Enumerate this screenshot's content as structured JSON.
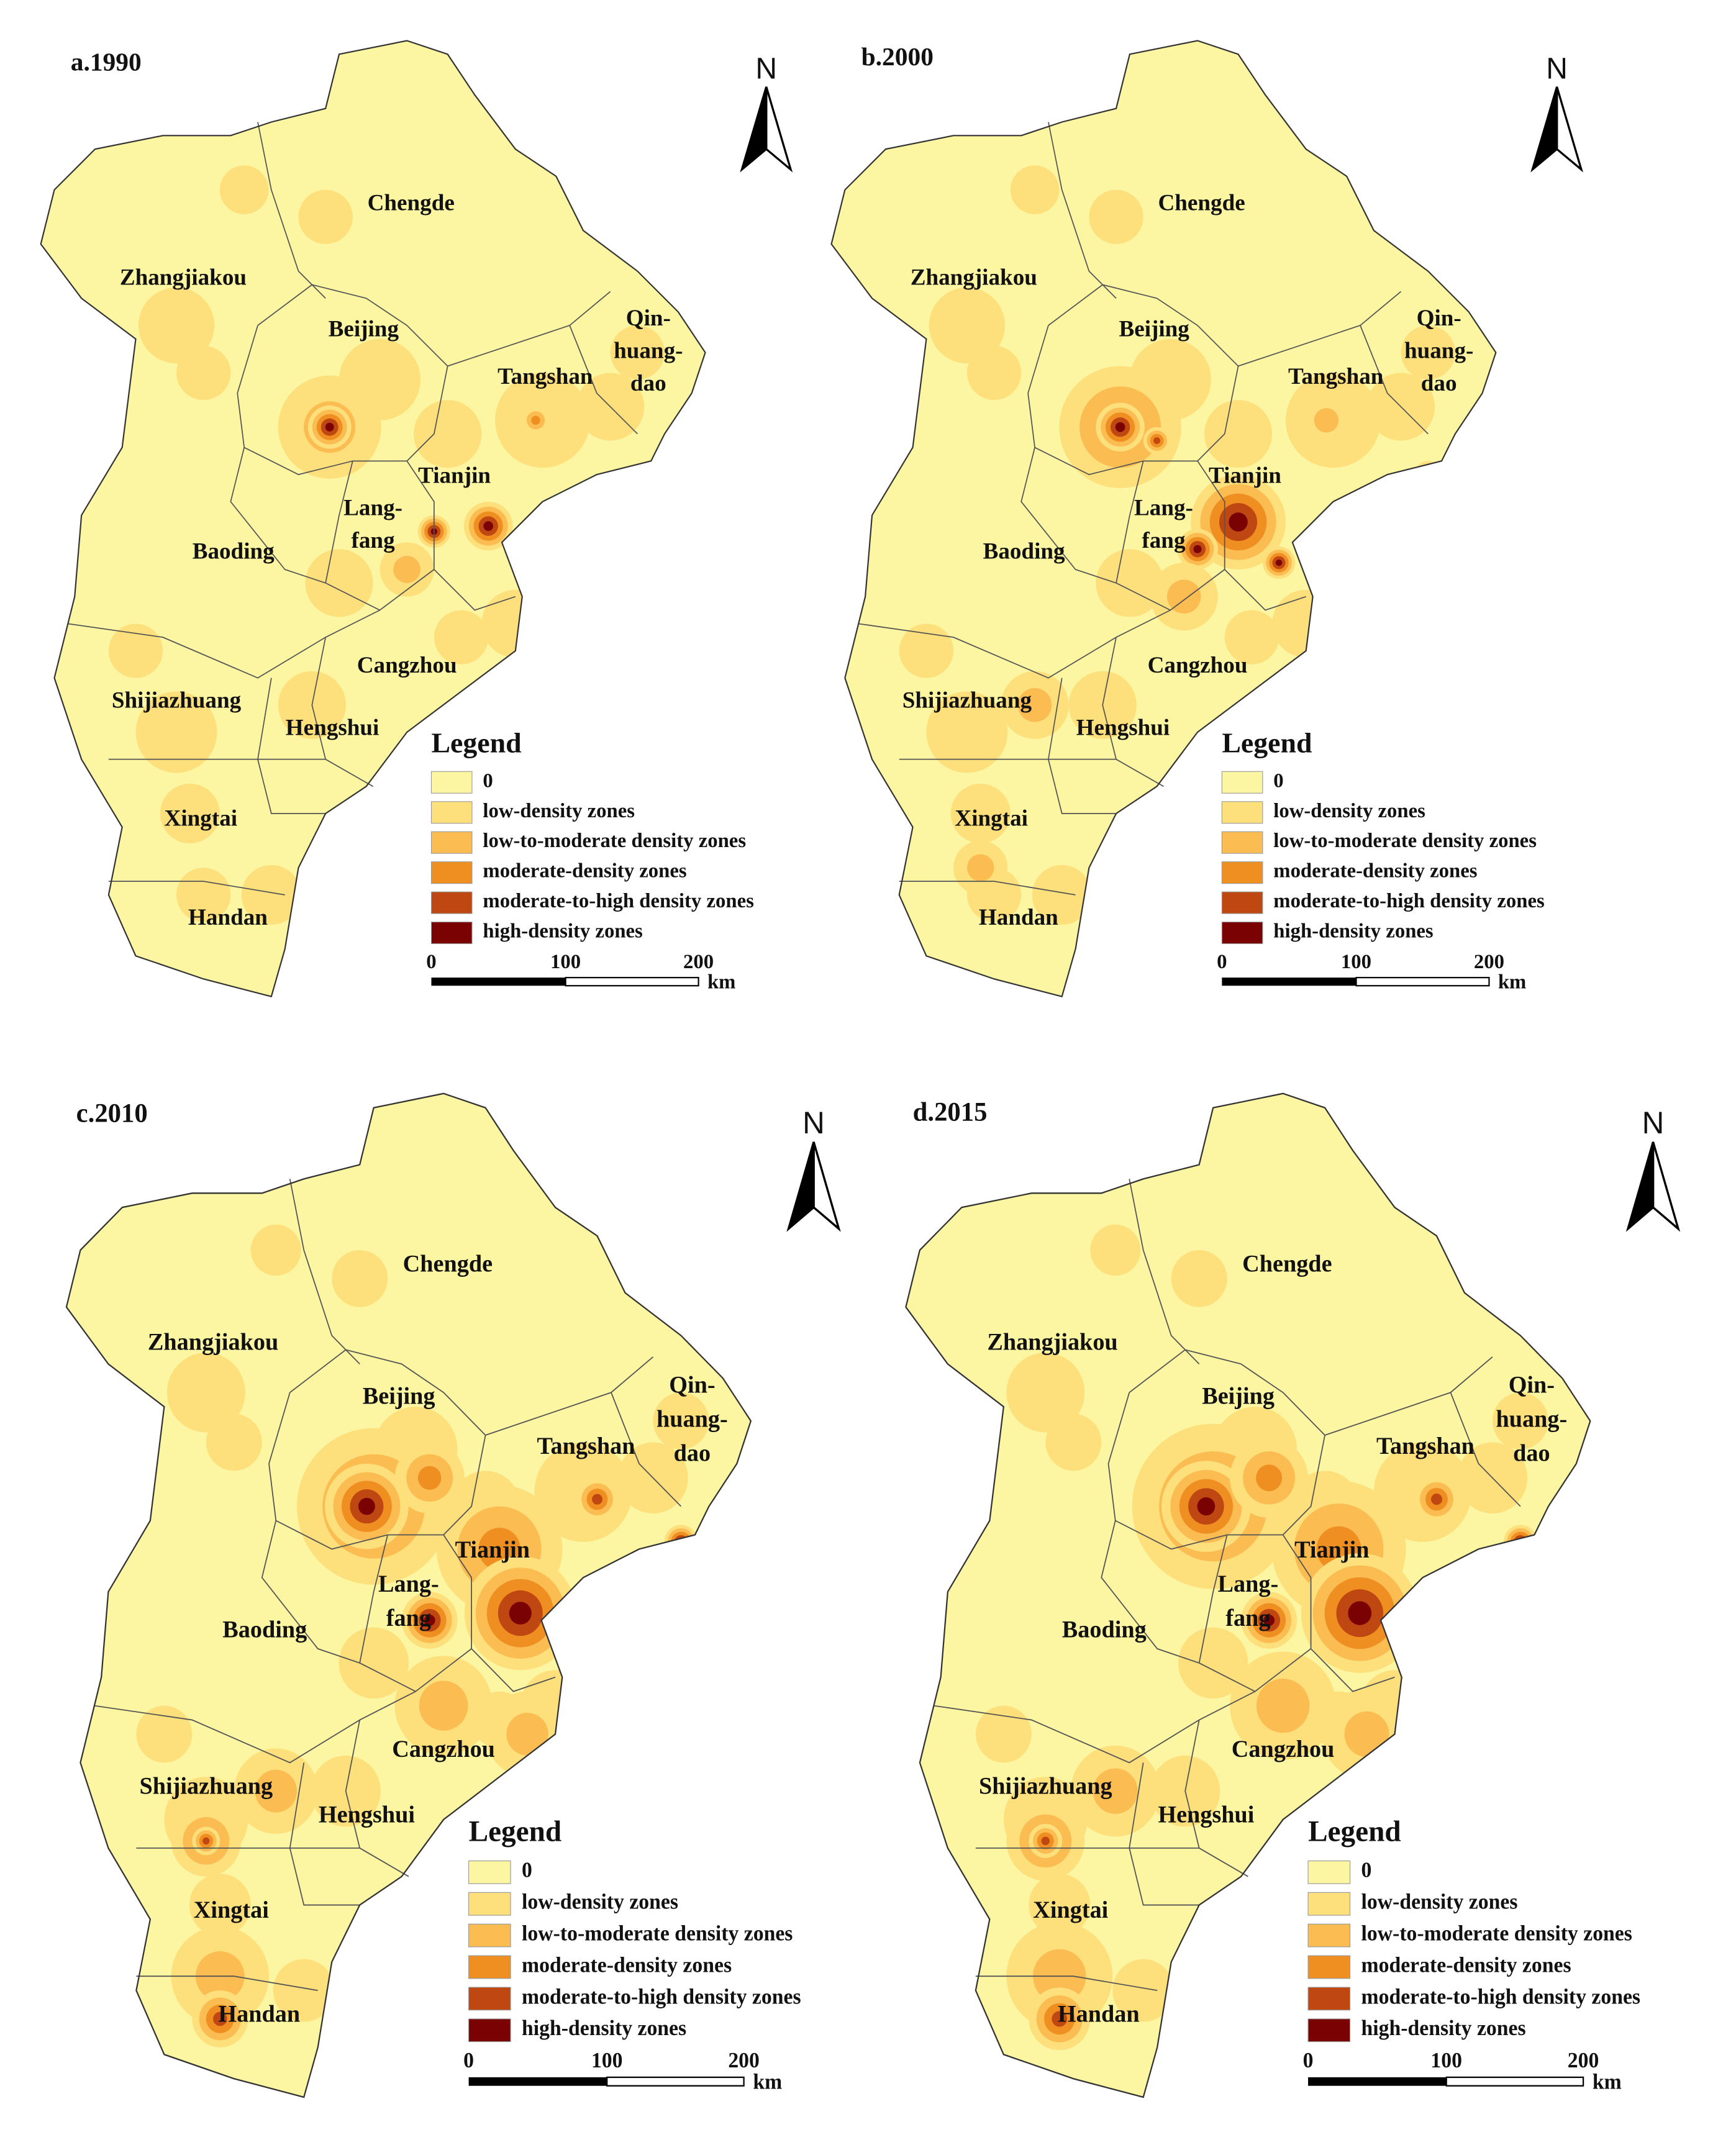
{
  "panels": [
    {
      "title": "a.1990"
    },
    {
      "title": "b.2000"
    },
    {
      "title": "c.2010"
    },
    {
      "title": "d.2015"
    }
  ],
  "north": "N",
  "legend": {
    "title": "Legend",
    "items": [
      {
        "label": "0",
        "color": "#fcf6a2"
      },
      {
        "label": "low-density zones",
        "color": "#fde07c"
      },
      {
        "label": "low-to-moderate density zones",
        "color": "#fbbc52"
      },
      {
        "label": "moderate-density zones",
        "color": "#ef8f22"
      },
      {
        "label": "moderate-to-high density zones",
        "color": "#bf4812"
      },
      {
        "label": "high-density zones",
        "color": "#7a0202"
      }
    ]
  },
  "scale_bar": {
    "ticks": [
      "0",
      "100",
      "200"
    ],
    "unit": "km"
  },
  "cities": [
    {
      "lines": [
        "Chengde"
      ]
    },
    {
      "lines": [
        "Zhangjiakou"
      ]
    },
    {
      "lines": [
        "Beijing"
      ]
    },
    {
      "lines": [
        "Qin-",
        "huang-",
        "dao"
      ]
    },
    {
      "lines": [
        "Tangshan"
      ]
    },
    {
      "lines": [
        "Tianjin"
      ]
    },
    {
      "lines": [
        "Lang-",
        "fang"
      ]
    },
    {
      "lines": [
        "Baoding"
      ]
    },
    {
      "lines": [
        "Cangzhou"
      ]
    },
    {
      "lines": [
        "Shijiazhuang"
      ]
    },
    {
      "lines": [
        "Hengshui"
      ]
    },
    {
      "lines": [
        "Xingtai"
      ]
    },
    {
      "lines": [
        "Handan"
      ]
    }
  ]
}
